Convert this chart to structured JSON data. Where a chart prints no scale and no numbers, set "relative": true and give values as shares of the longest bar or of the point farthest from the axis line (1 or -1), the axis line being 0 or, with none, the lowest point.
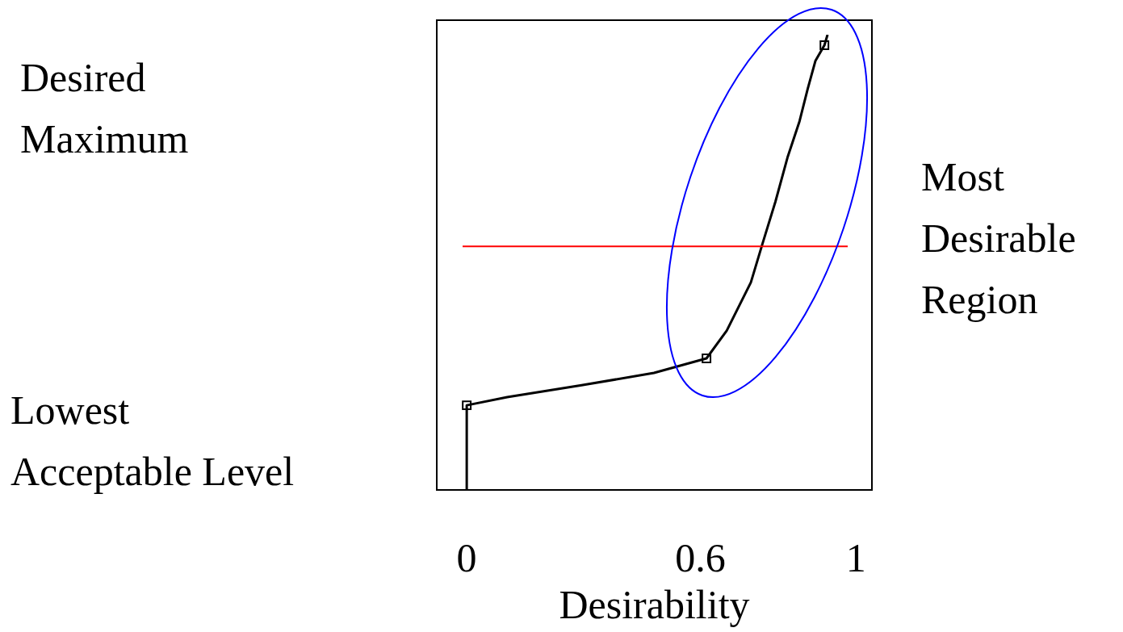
{
  "chart_data": {
    "type": "line",
    "xlabel": "Desirability",
    "relative": true,
    "xlim": [
      -0.077,
      1.041
    ],
    "xticks": [
      0,
      {
        "value": 0.6,
        "label": "0.6"
      },
      1
    ],
    "tick_labels": "x",
    "grid": false,
    "legend": false,
    "series": [
      {
        "color": "#000000",
        "marker": "none",
        "x": [
          0,
          0,
          0.104,
          0.295,
          0.481,
          0.616,
          0.668,
          0.73,
          0.761,
          0.793,
          0.824,
          0.855,
          0.876,
          0.896,
          0.919,
          0.927
        ],
        "values": [
          0,
          0.186,
          0.204,
          0.23,
          0.257,
          0.289,
          0.35,
          0.456,
          0.544,
          0.633,
          0.73,
          0.81,
          0.881,
          0.943,
          0.977,
          1
        ]
      },
      {
        "type": "scatter",
        "color": "#000000",
        "marker": "square",
        "x": [
          0,
          0.616,
          0.919
        ],
        "values": [
          0.186,
          0.289,
          0.977
        ]
      }
    ],
    "ref_lines": [
      {
        "axis": "y",
        "value": 0.535,
        "color": "#ff0000"
      }
    ],
    "annotations": [
      "Desired\nMaximum",
      "Lowest\nAcceptable Level",
      "Most\nDesirable\nRegion"
    ]
  }
}
